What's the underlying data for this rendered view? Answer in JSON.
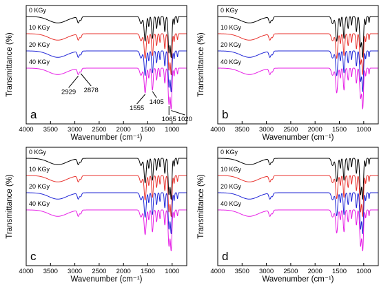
{
  "chart_data": [
    {
      "type": "line",
      "panel_label": "a",
      "xlabel": "Wavenumber (cm⁻¹)",
      "ylabel": "Transmittance (%)",
      "xlim": [
        4000,
        700
      ],
      "x_reversed": true,
      "x_ticks": [
        4000,
        3500,
        3000,
        2500,
        2000,
        1500,
        1000
      ],
      "series": [
        {
          "name": "0 KGy",
          "color": "#000000"
        },
        {
          "name": "10 KGy",
          "color": "#e8322d"
        },
        {
          "name": "20 KGy",
          "color": "#1f24d6"
        },
        {
          "name": "40 KGy",
          "color": "#e61ee6"
        }
      ],
      "annotations": [
        {
          "text": "2929",
          "x": 2929
        },
        {
          "text": "2878",
          "x": 2878
        },
        {
          "text": "1555",
          "x": 1555
        },
        {
          "text": "1405",
          "x": 1405
        },
        {
          "text": "1065",
          "x": 1065
        },
        {
          "text": "1020",
          "x": 1020
        }
      ]
    },
    {
      "type": "line",
      "panel_label": "b",
      "xlabel": "Wavenumber (cm⁻¹)",
      "ylabel": "Transmittance (%)",
      "xlim": [
        4000,
        700
      ],
      "x_reversed": true,
      "x_ticks": [
        4000,
        3500,
        3000,
        2500,
        2000,
        1500,
        1000
      ],
      "series": [
        {
          "name": "0 KGy",
          "color": "#000000"
        },
        {
          "name": "10 KGy",
          "color": "#e8322d"
        },
        {
          "name": "20 KGy",
          "color": "#1f24d6"
        },
        {
          "name": "40 KGy",
          "color": "#e61ee6"
        }
      ]
    },
    {
      "type": "line",
      "panel_label": "c",
      "xlabel": "Wavenumber (cm⁻¹)",
      "ylabel": "Transmittance (%)",
      "xlim": [
        4000,
        700
      ],
      "x_reversed": true,
      "x_ticks": [
        4000,
        3500,
        3000,
        2500,
        2000,
        1500,
        1000
      ],
      "series": [
        {
          "name": "0 KGy",
          "color": "#000000"
        },
        {
          "name": "10 KGy",
          "color": "#e8322d"
        },
        {
          "name": "20 KGy",
          "color": "#1f24d6"
        },
        {
          "name": "40 KGy",
          "color": "#e61ee6"
        }
      ]
    },
    {
      "type": "line",
      "panel_label": "d",
      "xlabel": "Wavenumber (cm⁻¹)",
      "ylabel": "Transmittance (%)",
      "xlim": [
        4000,
        700
      ],
      "x_reversed": true,
      "x_ticks": [
        4000,
        3500,
        3000,
        2500,
        2000,
        1500,
        1000
      ],
      "series": [
        {
          "name": "0 KGy",
          "color": "#000000"
        },
        {
          "name": "10 KGy",
          "color": "#e8322d"
        },
        {
          "name": "20 KGy",
          "color": "#1f24d6"
        },
        {
          "name": "40 KGy",
          "color": "#e61ee6"
        }
      ]
    }
  ]
}
